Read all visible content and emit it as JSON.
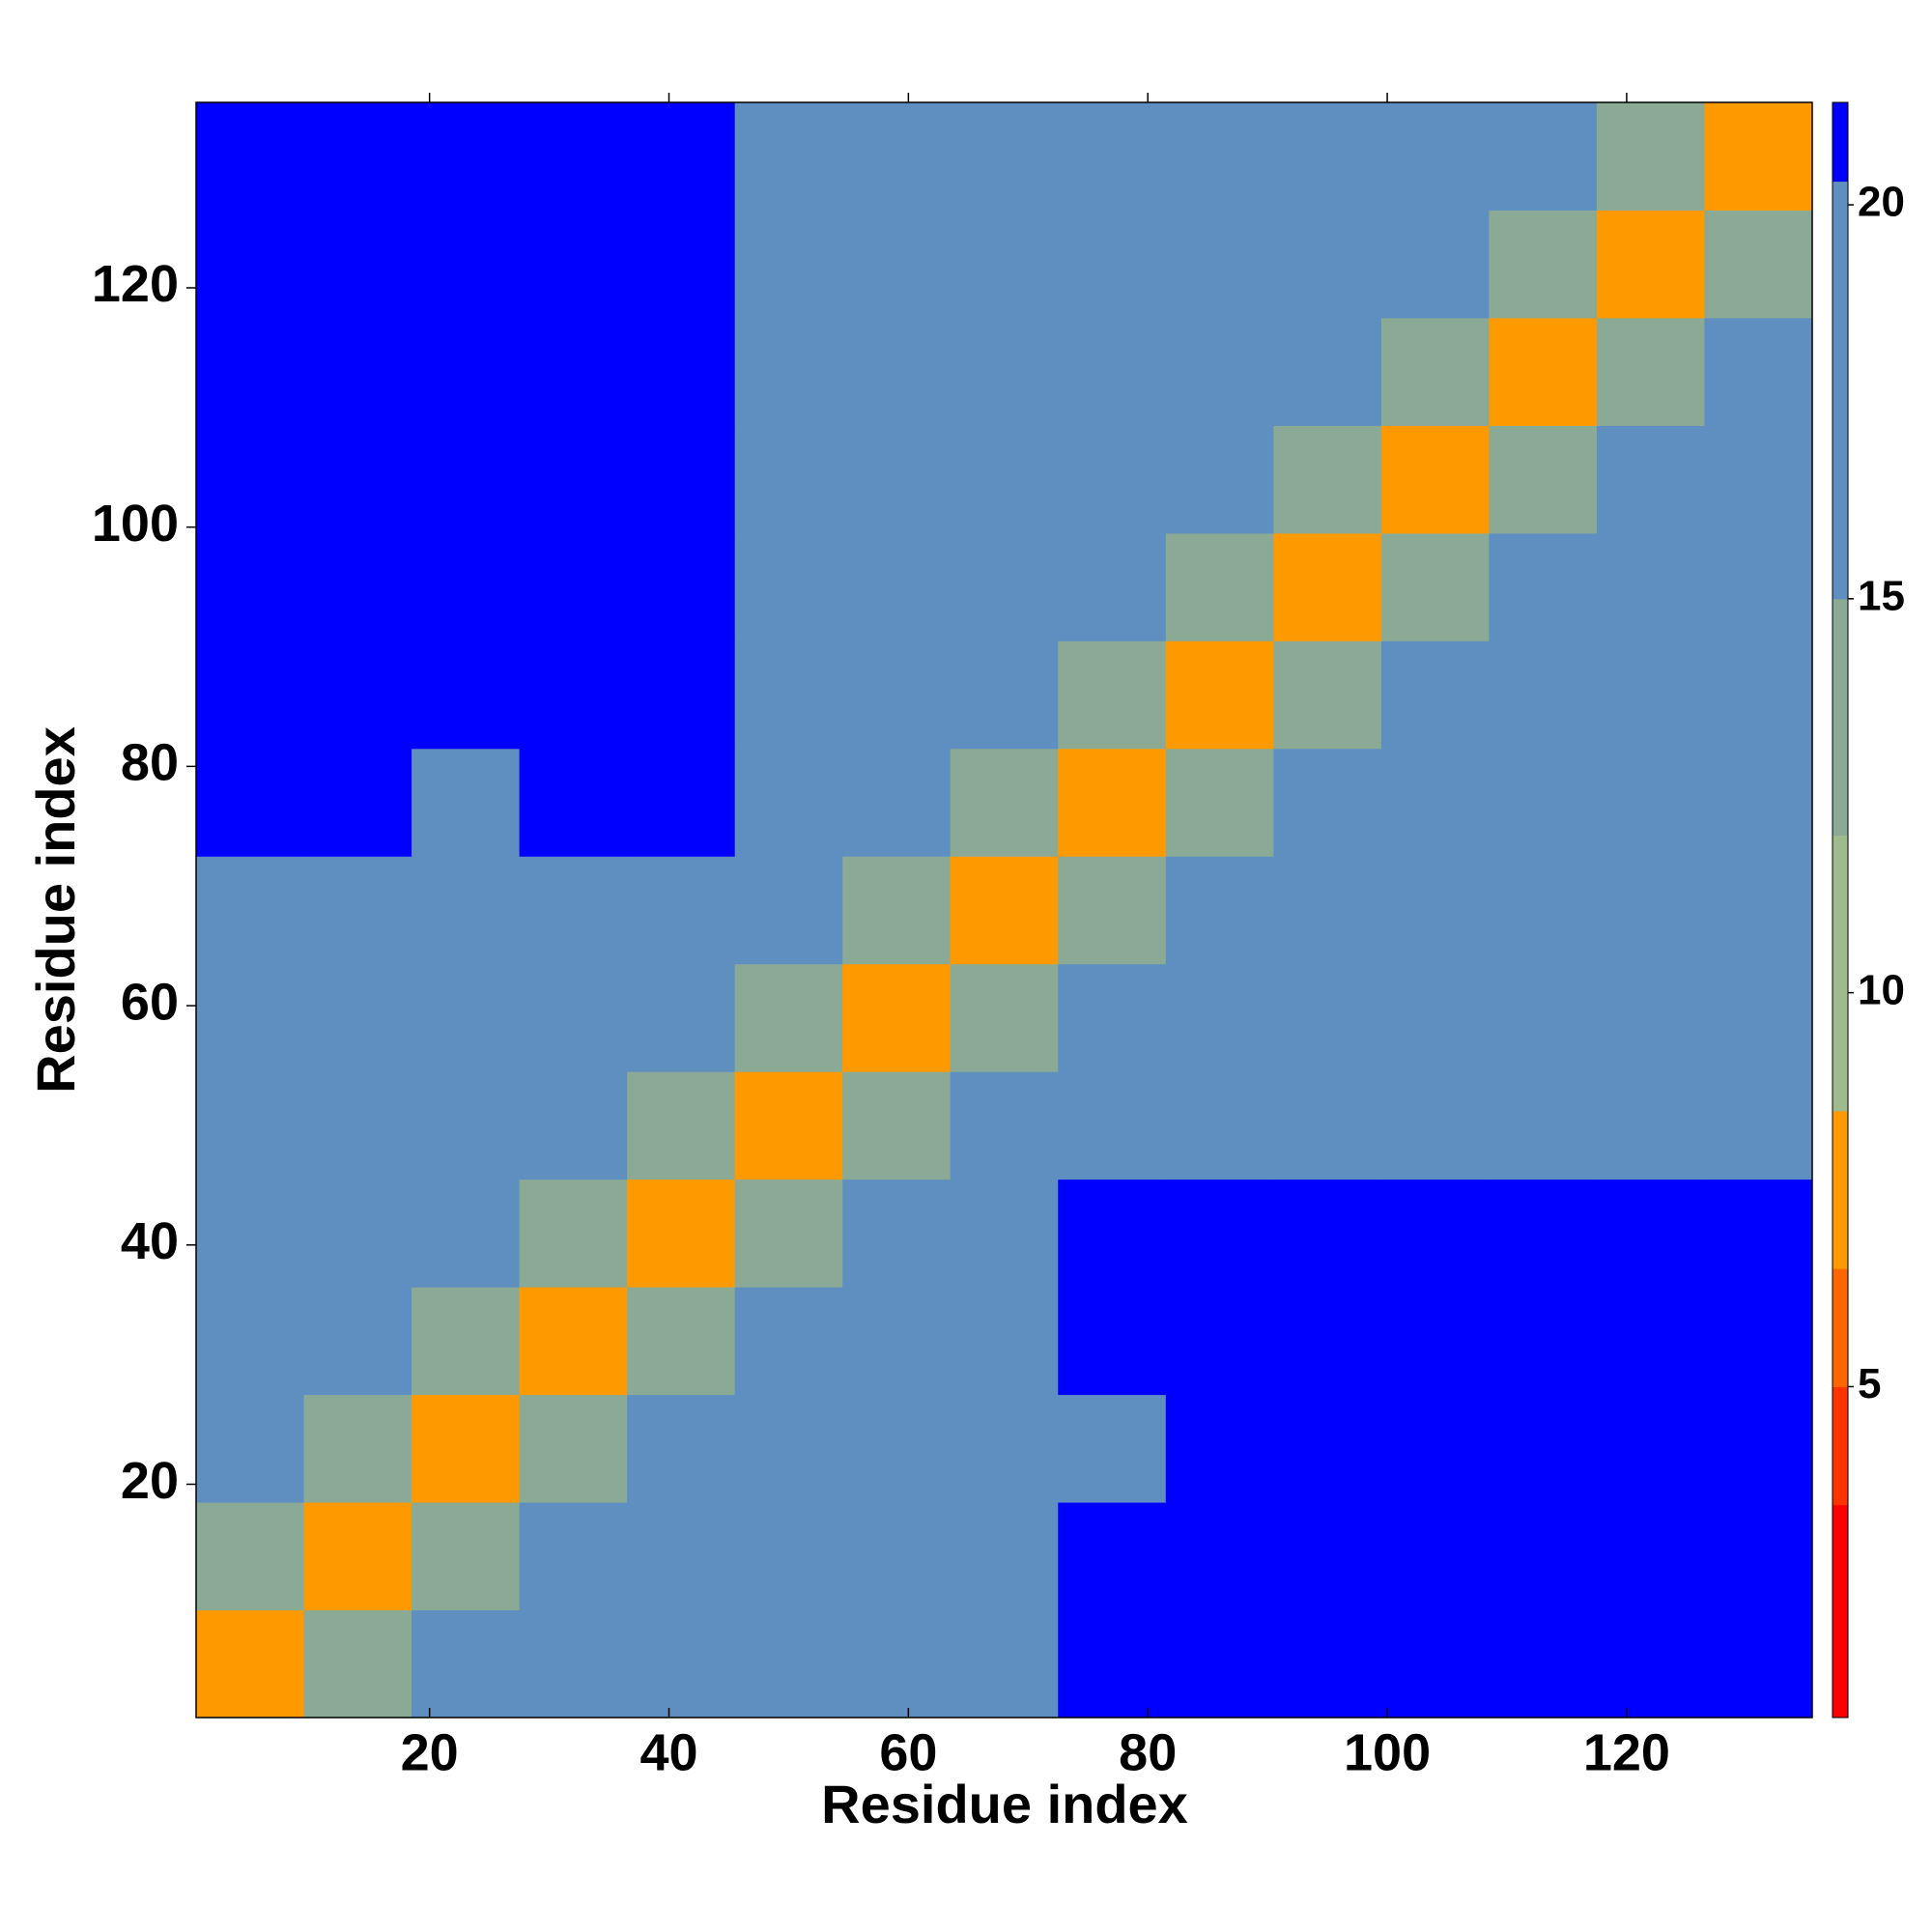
{
  "chart_data": {
    "type": "heatmap",
    "xlabel": "Residue index",
    "ylabel": "Residue index",
    "xbins": [
      0.5,
      9.5,
      18.5,
      27.5,
      36.5,
      45.5,
      54.5,
      63.5,
      72.5,
      81.5,
      90.5,
      99.5,
      108.5,
      117.5,
      126.5,
      135.5
    ],
    "ybins": [
      0.5,
      9.5,
      18.5,
      27.5,
      36.5,
      45.5,
      54.5,
      63.5,
      72.5,
      81.5,
      90.5,
      99.5,
      108.5,
      117.5,
      126.5,
      135.5
    ],
    "z": [
      [
        7,
        13,
        16,
        17,
        18,
        18,
        17,
        19,
        21,
        21,
        21,
        21,
        21,
        20.5,
        20.5
      ],
      [
        13,
        7,
        13,
        16,
        18,
        18,
        18,
        18,
        20.5,
        21,
        21,
        21,
        21,
        20.5,
        20.5
      ],
      [
        16,
        13,
        7,
        13,
        16,
        18,
        18,
        18,
        20,
        20.5,
        20.5,
        21,
        20.5,
        20.5,
        20.5
      ],
      [
        17,
        16,
        13,
        7,
        13,
        17,
        17,
        19,
        21,
        21,
        21,
        21,
        21,
        21,
        21
      ],
      [
        18,
        18,
        16,
        13,
        7,
        13,
        17,
        20,
        21,
        21,
        21,
        21,
        21,
        20.5,
        20.5
      ],
      [
        18,
        18,
        18,
        17,
        13,
        7,
        13,
        17,
        19,
        19,
        20,
        20,
        20,
        19,
        19
      ],
      [
        17,
        18,
        18,
        17,
        17,
        13,
        7,
        13,
        17,
        18,
        19,
        18,
        18,
        18,
        19
      ],
      [
        19,
        18,
        18,
        19,
        20,
        17,
        13,
        7,
        13,
        17,
        18,
        18,
        18,
        18,
        19
      ],
      [
        21,
        20.5,
        20,
        21,
        21,
        19,
        17,
        13,
        7,
        13,
        17,
        17,
        18,
        18,
        18
      ],
      [
        21,
        21,
        20.5,
        21,
        21,
        19,
        18,
        17,
        13,
        7,
        13,
        17,
        17,
        18,
        18
      ],
      [
        21,
        21,
        20.5,
        21,
        21,
        20,
        19,
        18,
        17,
        13,
        7,
        13,
        17,
        17,
        18
      ],
      [
        21,
        21,
        21,
        21,
        21,
        20,
        18,
        18,
        17,
        17,
        13,
        7,
        13,
        16,
        17
      ],
      [
        21,
        21,
        20.5,
        21,
        21,
        20,
        18,
        18,
        18,
        17,
        17,
        13,
        7,
        13,
        16
      ],
      [
        20.5,
        20.5,
        20.5,
        21,
        20.5,
        19,
        18,
        18,
        18,
        18,
        17,
        16,
        13,
        7,
        13
      ],
      [
        20.5,
        20.5,
        20.5,
        21,
        20.5,
        19,
        19,
        19,
        18,
        18,
        18,
        17,
        16,
        13,
        7
      ]
    ],
    "xlim": [
      0.5,
      135.5
    ],
    "ylim": [
      0.5,
      135.5
    ],
    "xticks": [
      20,
      40,
      60,
      80,
      100,
      120
    ],
    "yticks": [
      20,
      40,
      60,
      80,
      100,
      120
    ],
    "clim": [
      0.8,
      21.3
    ],
    "cticks": [
      5,
      10,
      15,
      20
    ],
    "colorscale": [
      {
        "value": 0.8,
        "color": "#ff0000"
      },
      {
        "value": 3.5,
        "color": "#ff3300"
      },
      {
        "value": 5,
        "color": "#ff6600"
      },
      {
        "value": 6.5,
        "color": "#ff9900"
      },
      {
        "value": 8.5,
        "color": "#9fba8c"
      },
      {
        "value": 12,
        "color": "#8aaa96"
      },
      {
        "value": 15,
        "color": "#5f8fc0"
      },
      {
        "value": 20.3,
        "color": "#0000ff"
      }
    ]
  }
}
